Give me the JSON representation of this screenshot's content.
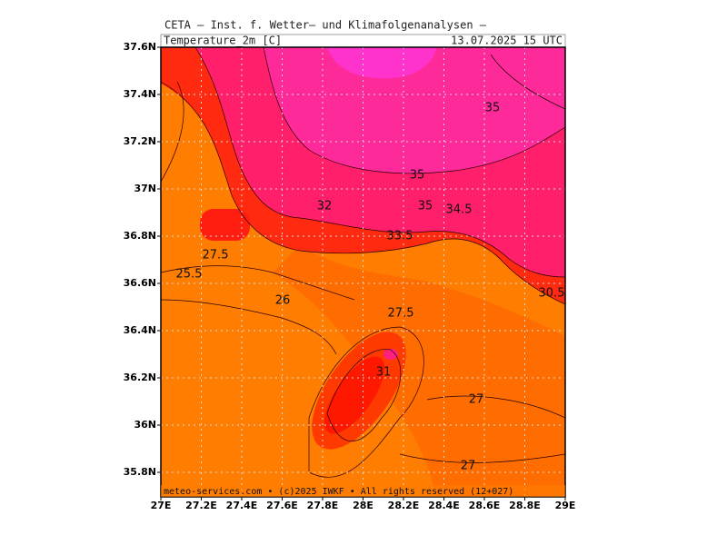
{
  "header": {
    "institute": "CETA – Inst. f. Wetter– und Klimafolgenanalysen –",
    "variable": "Temperature_2m [C]",
    "time": "13.07.2025 15 UTC"
  },
  "y_axis": {
    "labels": [
      "37.6N",
      "37.4N",
      "37.2N",
      "37N",
      "36.8N",
      "36.6N",
      "36.4N",
      "36.2N",
      "36N",
      "35.8N"
    ]
  },
  "x_axis": {
    "labels": [
      "27E",
      "27.2E",
      "27.4E",
      "27.6E",
      "27.8E",
      "28E",
      "28.2E",
      "28.4E",
      "28.6E",
      "28.8E",
      "29E"
    ]
  },
  "contour_labels": [
    "35",
    "35",
    "35",
    "34.5",
    "32",
    "33.5",
    "27.5",
    "25.5",
    "26",
    "30.5",
    "27.5",
    "31",
    "27",
    "27"
  ],
  "footer": "meteo-services.com • (c)2025 IWKF • All rights reserved (12+027)"
}
